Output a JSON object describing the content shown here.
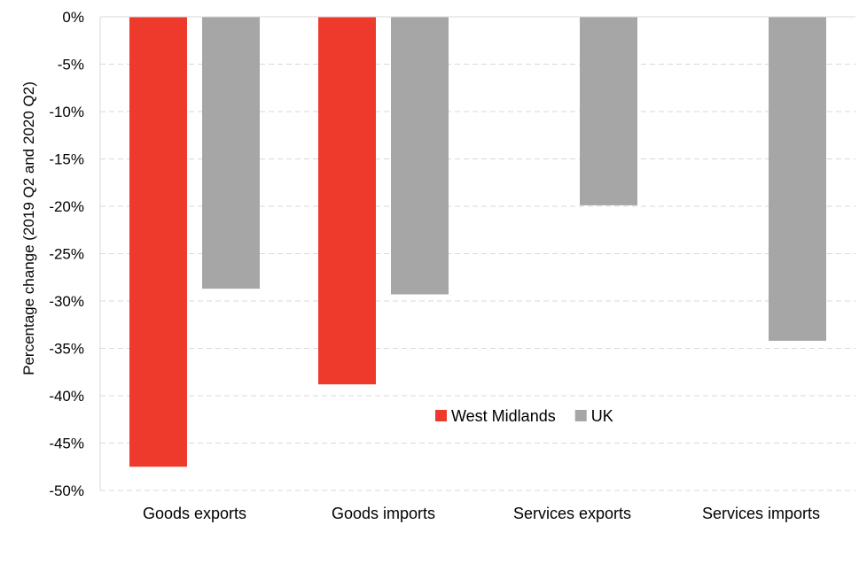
{
  "chart_data": {
    "type": "bar",
    "title": "",
    "xlabel": "",
    "ylabel": "Percentage change (2019 Q2 and 2020 Q2)",
    "categories": [
      "Goods exports",
      "Goods imports",
      "Services exports",
      "Services imports"
    ],
    "series": [
      {
        "name": "West Midlands",
        "color": "#EE3A2C",
        "values": [
          -47.5,
          -38.8,
          null,
          null
        ]
      },
      {
        "name": "UK",
        "color": "#A6A6A6",
        "values": [
          -28.7,
          -29.3,
          -19.9,
          -34.2
        ]
      }
    ],
    "ylim": [
      -50,
      0
    ],
    "yticks": [
      0,
      -5,
      -10,
      -15,
      -20,
      -25,
      -30,
      -35,
      -40,
      -45,
      -50
    ],
    "ytick_labels": [
      "0%",
      "-5%",
      "-10%",
      "-15%",
      "-20%",
      "-25%",
      "-30%",
      "-35%",
      "-40%",
      "-45%",
      "-50%"
    ],
    "grid": true,
    "gridline_color": "#D9D9D9",
    "axis_color": "#D9D9D9",
    "legend": {
      "placement": "inside-lower-center",
      "entries": [
        "West Midlands",
        "UK"
      ]
    }
  }
}
